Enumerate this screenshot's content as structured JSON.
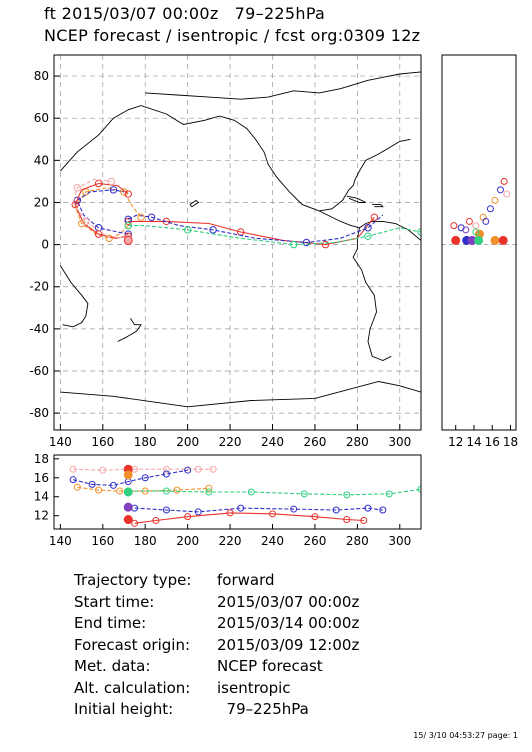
{
  "title": {
    "line1": "ft 2015/03/07 00:00z   79–225hPa",
    "line2": "NCEP forecast / isentropic / fcst org:0309 12z"
  },
  "colors": {
    "red": "#e8322a",
    "blue": "#3030c8",
    "orange": "#f0902a",
    "green": "#30d080",
    "pink": "#f4a8a8",
    "purple": "#8040c0"
  },
  "chart_data": [
    {
      "type": "line",
      "name": "map",
      "x_ticks": [
        140,
        160,
        180,
        200,
        220,
        240,
        260,
        280,
        300
      ],
      "y_ticks": [
        -80,
        -60,
        -40,
        -20,
        0,
        20,
        40,
        60,
        80
      ],
      "xlim": [
        137,
        310
      ],
      "ylim": [
        -88,
        90
      ],
      "grid": true,
      "series": [
        {
          "color": "red",
          "x": [
            172,
            178,
            190,
            210,
            225,
            245,
            265,
            280,
            288
          ],
          "y": [
            11,
            11,
            11,
            10,
            6,
            2,
            0,
            3,
            13
          ]
        },
        {
          "color": "blue",
          "x": [
            172,
            176,
            183,
            196,
            212,
            232,
            256,
            272,
            285,
            292
          ],
          "y": [
            12,
            14,
            13,
            9,
            7,
            3,
            1,
            3,
            8,
            14
          ]
        },
        {
          "color": "orange",
          "x": [
            172,
            168,
            163,
            157,
            150,
            147,
            152,
            162,
            170,
            174,
            178
          ],
          "y": [
            9,
            5,
            3,
            5,
            10,
            18,
            25,
            27,
            25,
            18,
            13
          ]
        },
        {
          "color": "green",
          "x": [
            172,
            180,
            200,
            225,
            250,
            270,
            285,
            300,
            310
          ],
          "y": [
            9,
            9,
            7,
            3,
            0,
            1,
            4,
            8,
            6
          ]
        },
        {
          "color": "blue",
          "x": [
            172,
            167,
            158,
            151,
            148,
            154,
            165,
            170
          ],
          "y": [
            5,
            6,
            8,
            14,
            21,
            25,
            26,
            25
          ]
        },
        {
          "color": "red",
          "x": [
            172,
            166,
            158,
            151,
            147,
            150,
            158,
            167,
            172
          ],
          "y": [
            4,
            3,
            5,
            10,
            19,
            26,
            29,
            28,
            24
          ]
        },
        {
          "color": "pink",
          "x": [
            172,
            162,
            152,
            146,
            148,
            156,
            164
          ],
          "y": [
            3,
            4,
            11,
            20,
            27,
            31,
            30
          ]
        }
      ]
    },
    {
      "type": "scatter",
      "name": "side-panel",
      "x_ticks": [
        12,
        14,
        16,
        18
      ],
      "xlim": [
        10.5,
        18.6
      ]
    },
    {
      "type": "line",
      "name": "height-panel",
      "x_ticks": [
        140,
        160,
        180,
        200,
        220,
        240,
        260,
        280,
        300
      ],
      "y_ticks": [
        12,
        14,
        16,
        18
      ],
      "xlim": [
        137,
        310
      ],
      "ylim": [
        10.6,
        18.4
      ],
      "series": [
        {
          "color": "pink",
          "x": [
            146,
            160,
            175,
            190,
            205,
            212
          ],
          "y": [
            16.9,
            16.8,
            16.9,
            16.9,
            16.9,
            16.9
          ]
        },
        {
          "color": "blue",
          "x": [
            146,
            155,
            165,
            172,
            180,
            190,
            200
          ],
          "y": [
            15.8,
            15.3,
            15.2,
            15.6,
            16.0,
            16.4,
            16.8
          ]
        },
        {
          "color": "orange",
          "x": [
            148,
            158,
            168,
            180,
            195,
            210
          ],
          "y": [
            15.0,
            14.7,
            14.6,
            14.6,
            14.7,
            14.9
          ]
        },
        {
          "color": "green",
          "x": [
            172,
            190,
            210,
            230,
            255,
            275,
            295,
            310
          ],
          "y": [
            14.6,
            14.6,
            14.5,
            14.5,
            14.3,
            14.2,
            14.3,
            14.8
          ]
        },
        {
          "color": "blue",
          "x": [
            175,
            190,
            205,
            225,
            250,
            270,
            285,
            292
          ],
          "y": [
            12.8,
            12.6,
            12.4,
            12.8,
            12.7,
            12.6,
            12.8,
            12.6
          ]
        },
        {
          "color": "red",
          "x": [
            175,
            185,
            200,
            220,
            240,
            260,
            275,
            283
          ],
          "y": [
            11.2,
            11.5,
            11.9,
            12.3,
            12.2,
            11.9,
            11.6,
            11.5
          ]
        }
      ]
    }
  ],
  "info": {
    "traj_type_label": "Trajectory type:",
    "traj_type_value": "forward",
    "start_label": "Start time:",
    "start_value": "2015/03/07 00:00z",
    "end_label": "End time:",
    "end_value": "2015/03/14 00:00z",
    "origin_label": "Forecast origin:",
    "origin_value": "2015/03/09 12:00z",
    "met_label": "Met. data:",
    "met_value": "NCEP forecast",
    "alt_label": "Alt. calculation:",
    "alt_value": "isentropic",
    "height_label": "Initial height:",
    "height_value": "  79–225hPa"
  },
  "footer": "15/ 3/10 04:53:27 page: 1"
}
